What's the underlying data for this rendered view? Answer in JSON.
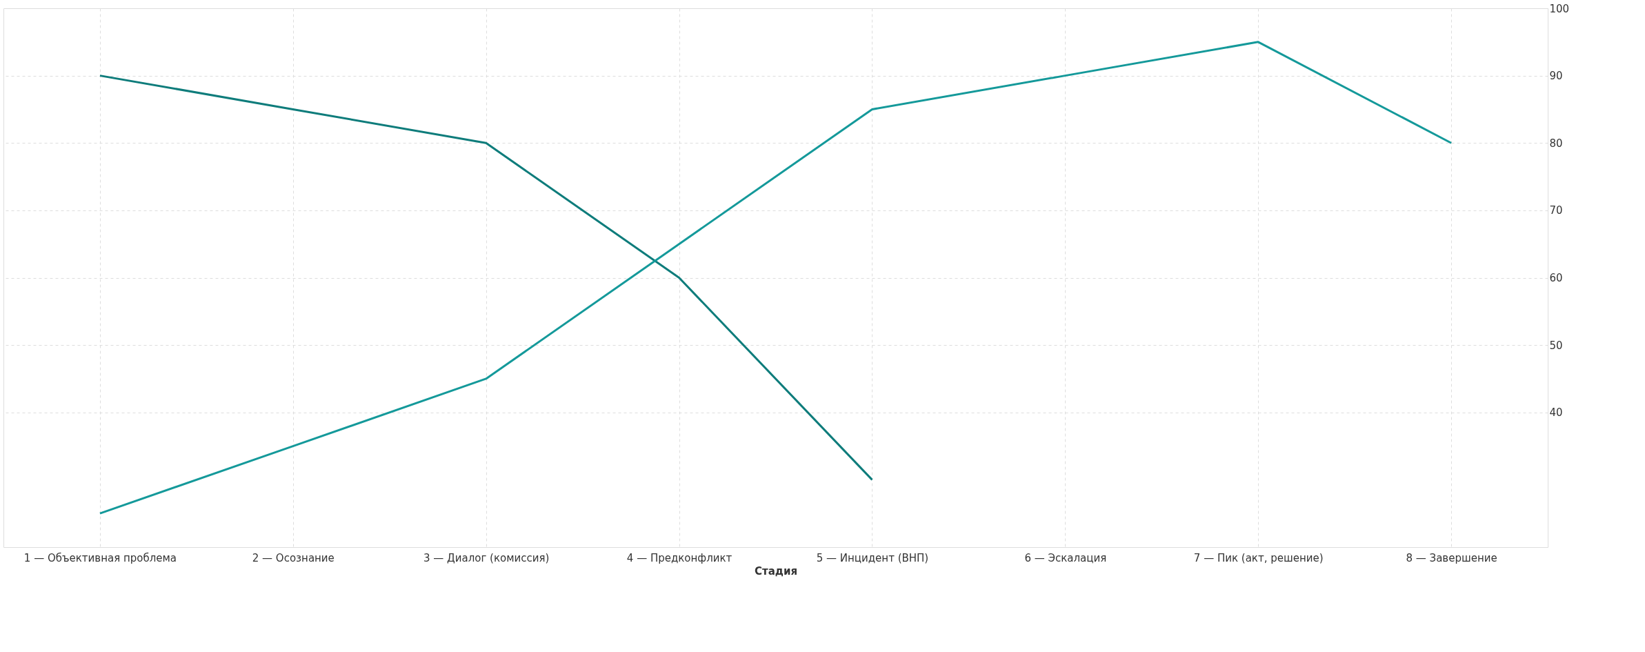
{
  "chart_data": {
    "type": "line",
    "xlabel": "Стадия",
    "categories": [
      "1 — Объективная проблема",
      "2 — Осознание",
      "3 — Диалог (комиссия)",
      "4 — Предконфликт",
      "5 — Инцидент (ВНП)",
      "6 — Эскалация",
      "7 — Пик (акт, решение)",
      "8 — Завершение"
    ],
    "series": [
      {
        "color": "#0e7c7b",
        "values": [
          90,
          85,
          80,
          60,
          30,
          null,
          null,
          null
        ]
      },
      {
        "color": "#14999a",
        "values": [
          25,
          35,
          45,
          65,
          85,
          90,
          95,
          80
        ]
      }
    ],
    "ylim": [
      20,
      100
    ],
    "yticks": [
      40,
      50,
      60,
      70,
      80,
      90,
      100
    ],
    "grid": true,
    "legend": false,
    "marker": "none",
    "line_style": "solid"
  }
}
